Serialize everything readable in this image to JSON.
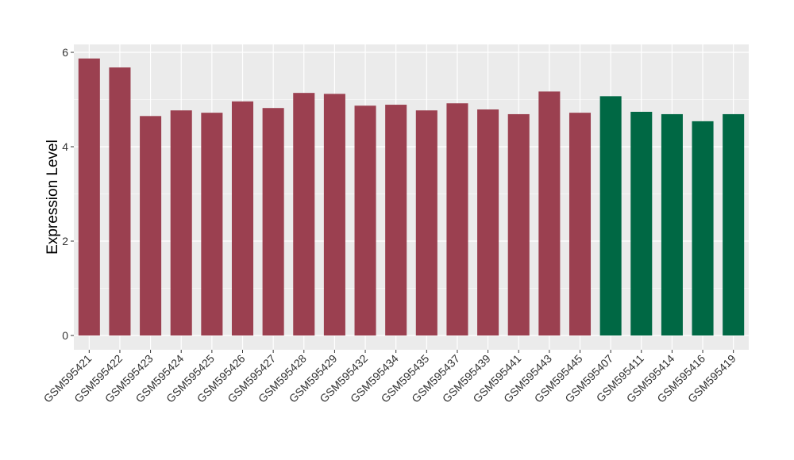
{
  "chart_data": {
    "type": "bar",
    "title": "",
    "xlabel": "",
    "ylabel": "Expression Level",
    "ylim": [
      0,
      6.2
    ],
    "yticks": [
      0,
      2,
      4,
      6
    ],
    "grid": true,
    "background": "#EBEBEB",
    "gridline_color": "#FFFFFF",
    "categories": [
      "GSM595421",
      "GSM595422",
      "GSM595423",
      "GSM595424",
      "GSM595425",
      "GSM595426",
      "GSM595427",
      "GSM595428",
      "GSM595429",
      "GSM595432",
      "GSM595434",
      "GSM595435",
      "GSM595437",
      "GSM595439",
      "GSM595441",
      "GSM595443",
      "GSM595445",
      "GSM595407",
      "GSM595411",
      "GSM595414",
      "GSM595416",
      "GSM595419"
    ],
    "values": [
      5.87,
      5.68,
      4.65,
      4.77,
      4.72,
      4.96,
      4.82,
      5.14,
      5.12,
      4.87,
      4.89,
      4.77,
      4.92,
      4.79,
      4.69,
      5.17,
      4.72,
      5.07,
      4.74,
      4.69,
      4.54,
      4.69
    ],
    "colors": [
      "#9B4050",
      "#9B4050",
      "#9B4050",
      "#9B4050",
      "#9B4050",
      "#9B4050",
      "#9B4050",
      "#9B4050",
      "#9B4050",
      "#9B4050",
      "#9B4050",
      "#9B4050",
      "#9B4050",
      "#9B4050",
      "#9B4050",
      "#9B4050",
      "#9B4050",
      "#006844",
      "#006844",
      "#006844",
      "#006844",
      "#006844"
    ]
  }
}
